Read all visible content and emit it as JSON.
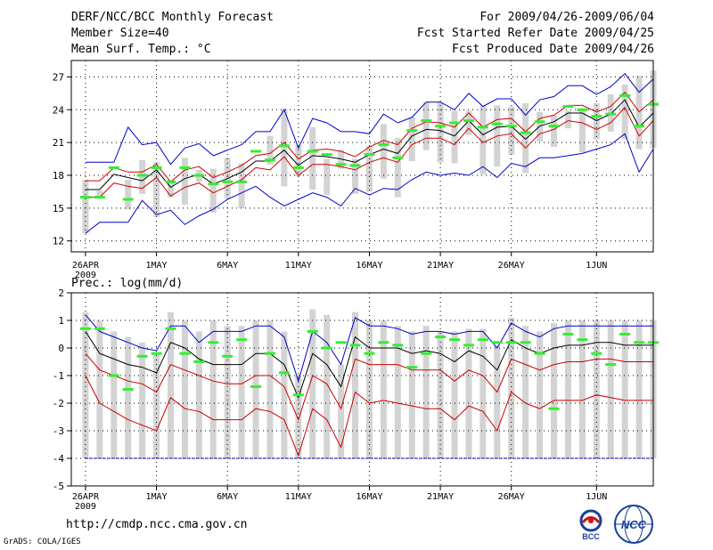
{
  "header": {
    "title": "DERF/NCC/BCC Monthly Forecast",
    "member_size": "Member Size=40",
    "variable": "Mean Surf. Temp.: °C",
    "fcst_period": "For 2009/04/26-2009/06/04",
    "fcst_started": "Fcst Started Refer Date 2009/04/25",
    "fcst_produced": "Fcst Produced Date 2009/04/26"
  },
  "footer": {
    "url": "http://cmdp.ncc.cma.gov.cn",
    "credit": "GrADS: COLA/IGES"
  },
  "logos": {
    "bcc": "BCC",
    "ncc": "NCC"
  },
  "colors": {
    "spread_bar": "#d3d3d3",
    "mean": "#000000",
    "inner_bounds": "#cc0000",
    "outer_bounds": "#0000cc",
    "observed": "#33ee33",
    "baseline": "#0000cc"
  },
  "chart_data": [
    {
      "type": "line",
      "panel": "temperature",
      "title": "Mean Surf. Temp.: °C",
      "xlabel": "",
      "ylabel": "°C",
      "ylim": [
        11,
        28.5
      ],
      "yticks": [
        12,
        15,
        18,
        21,
        24,
        27
      ],
      "x_day_range": [
        -1,
        40
      ],
      "x_ticks": [
        {
          "day": 0,
          "label": "26APR",
          "sublabel": "2009"
        },
        {
          "day": 5,
          "label": "1MAY"
        },
        {
          "day": 10,
          "label": "6MAY"
        },
        {
          "day": 15,
          "label": "11MAY"
        },
        {
          "day": 20,
          "label": "16MAY"
        },
        {
          "day": 25,
          "label": "21MAY"
        },
        {
          "day": 30,
          "label": "26MAY"
        },
        {
          "day": 36,
          "label": "1JUN"
        }
      ],
      "series": [
        {
          "name": "upper-outer",
          "color": "#0000cc",
          "values": [
            19.2,
            19.2,
            19.2,
            22.4,
            20.8,
            21.0,
            19.0,
            20.5,
            20.9,
            19.8,
            20.3,
            20.8,
            22.0,
            22.0,
            24.0,
            20.5,
            23.2,
            22.8,
            22.0,
            22.0,
            21.8,
            23.6,
            22.8,
            23.3,
            24.7,
            24.7,
            24.0,
            25.5,
            24.3,
            25.0,
            25.0,
            23.5,
            24.9,
            25.2,
            26.2,
            26.2,
            25.4,
            26.1,
            27.3,
            25.6,
            26.8
          ]
        },
        {
          "name": "upper-inner",
          "color": "#cc0000",
          "values": [
            17.5,
            17.5,
            18.7,
            18.3,
            18.3,
            19.0,
            17.4,
            18.5,
            18.8,
            17.8,
            18.3,
            18.9,
            19.8,
            20.0,
            21.0,
            19.5,
            20.3,
            20.4,
            20.2,
            19.7,
            20.6,
            21.2,
            20.8,
            22.3,
            22.9,
            22.8,
            22.4,
            23.7,
            22.4,
            23.1,
            23.2,
            22.0,
            23.2,
            23.5,
            24.4,
            24.4,
            23.8,
            24.3,
            25.6,
            23.8,
            24.9
          ]
        },
        {
          "name": "mean",
          "color": "#000000",
          "values": [
            16.7,
            16.7,
            18.1,
            17.8,
            17.5,
            18.5,
            16.9,
            17.7,
            18.1,
            17.2,
            17.7,
            18.3,
            19.3,
            19.3,
            20.3,
            18.9,
            19.8,
            19.7,
            19.5,
            19.2,
            19.9,
            20.4,
            20.0,
            21.6,
            22.2,
            22.1,
            21.6,
            23.0,
            21.7,
            22.4,
            22.5,
            21.3,
            22.5,
            22.9,
            23.7,
            23.7,
            23.0,
            23.6,
            24.9,
            22.4,
            23.7
          ]
        },
        {
          "name": "lower-inner",
          "color": "#cc0000",
          "values": [
            16.0,
            16.0,
            17.3,
            17.0,
            16.8,
            17.8,
            16.1,
            16.9,
            17.3,
            16.4,
            17.0,
            17.6,
            18.7,
            18.5,
            19.7,
            18.0,
            19.0,
            19.0,
            18.8,
            18.5,
            19.2,
            19.6,
            19.2,
            20.8,
            21.4,
            21.4,
            20.8,
            22.3,
            21.0,
            21.6,
            21.8,
            20.5,
            21.8,
            22.2,
            23.0,
            22.8,
            22.2,
            22.8,
            24.2,
            21.6,
            23.0
          ]
        },
        {
          "name": "lower-outer",
          "color": "#0000cc",
          "values": [
            12.7,
            13.7,
            13.7,
            13.7,
            15.7,
            14.4,
            14.8,
            13.5,
            14.3,
            14.9,
            15.8,
            16.4,
            17.0,
            16.0,
            15.2,
            15.8,
            16.4,
            16.0,
            15.2,
            16.8,
            16.2,
            16.8,
            16.7,
            17.6,
            18.3,
            18.0,
            18.2,
            18.0,
            18.8,
            17.8,
            19.1,
            18.8,
            19.6,
            19.6,
            19.8,
            20.0,
            20.4,
            20.8,
            21.8,
            18.3,
            20.4
          ]
        }
      ],
      "observed": [
        16.0,
        16.0,
        18.7,
        15.8,
        18.0,
        18.7,
        17.4,
        18.7,
        18.0,
        17.2,
        17.4,
        17.4,
        20.2,
        19.4,
        20.7,
        18.7,
        20.2,
        19.9,
        19.0,
        18.9,
        19.9,
        20.8,
        19.6,
        22.1,
        23.0,
        22.5,
        22.8,
        23.0,
        22.4,
        22.7,
        22.5,
        21.9,
        22.9,
        22.5,
        24.3,
        24.0,
        23.4,
        23.6,
        25.3,
        22.5,
        24.5
      ],
      "spread_max": [
        17.6,
        16.6,
        17.0,
        17.6,
        19.4,
        19.2,
        17.6,
        19.6,
        18.5,
        18.6,
        19.6,
        19.1,
        18.8,
        21.6,
        24.1,
        20.7,
        22.4,
        19.5,
        20.3,
        19.5,
        20.7,
        22.7,
        21.4,
        23.3,
        24.7,
        24.7,
        23.9,
        23.9,
        24.4,
        24.4,
        24.3,
        24.6,
        23.8,
        23.5,
        23.9,
        24.1,
        24.6,
        25.4,
        26.3,
        27.1,
        27.6
      ],
      "spread_min": [
        12.7,
        16.0,
        17.8,
        14.9,
        16.3,
        14.2,
        16.0,
        15.3,
        17.4,
        14.6,
        15.9,
        15.0,
        19.1,
        19.0,
        17.0,
        17.9,
        16.7,
        16.2,
        18.6,
        16.3,
        16.5,
        17.7,
        16.0,
        19.3,
        20.3,
        19.2,
        19.1,
        21.7,
        18.1,
        18.8,
        19.9,
        18.2,
        21.1,
        20.6,
        22.3,
        20.1,
        21.3,
        22.0,
        21.3,
        20.4,
        20.5
      ]
    },
    {
      "type": "line",
      "panel": "precipitation",
      "title": "Prec.: log(mm/d)",
      "xlabel": "",
      "ylabel": "log(mm/d)",
      "ylim": [
        -5,
        2
      ],
      "yticks": [
        2,
        1,
        0,
        -1,
        -2,
        -3,
        -4,
        -5
      ],
      "x_day_range": [
        -1,
        40
      ],
      "x_ticks": [
        {
          "day": 0,
          "label": "26APR",
          "sublabel": "2009"
        },
        {
          "day": 5,
          "label": "1MAY"
        },
        {
          "day": 10,
          "label": "6MAY"
        },
        {
          "day": 15,
          "label": "11MAY"
        },
        {
          "day": 20,
          "label": "16MAY"
        },
        {
          "day": 25,
          "label": "21MAY"
        },
        {
          "day": 30,
          "label": "26MAY"
        },
        {
          "day": 36,
          "label": "1JUN"
        }
      ],
      "baseline": -4,
      "series": [
        {
          "name": "upper-outer",
          "color": "#0000cc",
          "values": [
            1.2,
            0.6,
            0.4,
            0.2,
            0.0,
            -0.1,
            0.8,
            0.8,
            0.2,
            0.6,
            0.6,
            0.6,
            0.8,
            0.8,
            0.4,
            -1.2,
            0.6,
            0.2,
            -0.6,
            1.1,
            0.8,
            0.8,
            0.7,
            0.5,
            0.6,
            0.6,
            0.5,
            0.6,
            0.6,
            0.0,
            0.9,
            0.6,
            0.4,
            0.7,
            0.8,
            0.8,
            0.8,
            0.8,
            0.8,
            0.8,
            0.8
          ]
        },
        {
          "name": "mean",
          "color": "#000000",
          "values": [
            0.6,
            -0.2,
            -0.4,
            -0.6,
            -0.7,
            -0.9,
            0.2,
            0.0,
            -0.4,
            -0.6,
            -0.6,
            -0.6,
            -0.2,
            -0.2,
            -0.6,
            -1.8,
            -0.2,
            -0.6,
            -1.4,
            0.4,
            0.0,
            0.0,
            0.0,
            -0.2,
            -0.1,
            -0.2,
            -0.5,
            -0.1,
            -0.3,
            -0.8,
            0.3,
            0.0,
            -0.2,
            0.0,
            0.1,
            0.1,
            0.2,
            0.2,
            0.1,
            0.1,
            0.1
          ]
        },
        {
          "name": "upper-inner",
          "color": "#cc0000",
          "values": [
            -0.2,
            -0.8,
            -1.0,
            -1.2,
            -1.3,
            -1.6,
            -0.6,
            -0.8,
            -1.0,
            -1.2,
            -1.3,
            -1.3,
            -1.0,
            -1.0,
            -1.4,
            -2.6,
            -1.0,
            -1.3,
            -2.2,
            -0.4,
            -0.6,
            -0.6,
            -0.6,
            -0.8,
            -0.8,
            -0.8,
            -1.2,
            -0.8,
            -1.0,
            -1.6,
            -0.4,
            -0.6,
            -0.8,
            -0.6,
            -0.5,
            -0.5,
            -0.4,
            -0.4,
            -0.5,
            -0.5,
            -0.5
          ]
        },
        {
          "name": "lower-inner",
          "color": "#cc0000",
          "values": [
            -1.0,
            -2.0,
            -2.3,
            -2.6,
            -2.8,
            -3.0,
            -1.8,
            -2.2,
            -2.3,
            -2.6,
            -2.6,
            -2.6,
            -2.2,
            -2.3,
            -2.6,
            -3.9,
            -2.2,
            -2.6,
            -3.6,
            -1.6,
            -2.0,
            -1.9,
            -2.0,
            -2.1,
            -2.2,
            -2.2,
            -2.6,
            -2.1,
            -2.3,
            -3.0,
            -1.6,
            -2.0,
            -2.2,
            -1.9,
            -1.9,
            -1.9,
            -1.7,
            -1.8,
            -1.9,
            -1.9,
            -1.9
          ]
        }
      ],
      "observed": [
        0.7,
        0.7,
        -1.0,
        -1.5,
        -0.3,
        -0.2,
        0.7,
        -0.2,
        -0.5,
        0.2,
        -0.3,
        0.3,
        -1.4,
        -0.2,
        -0.9,
        -1.7,
        0.6,
        0.0,
        0.2,
        0.1,
        -0.2,
        0.2,
        0.1,
        -0.7,
        -0.2,
        0.4,
        0.3,
        0.1,
        0.3,
        0.2,
        0.2,
        0.2,
        -0.2,
        -2.2,
        0.5,
        0.3,
        -0.2,
        -0.6,
        0.5,
        0.2,
        0.2
      ],
      "spread_max": [
        1.3,
        1.0,
        0.6,
        0.4,
        0.2,
        -0.2,
        1.3,
        1.0,
        0.6,
        1.0,
        0.8,
        0.8,
        1.0,
        1.0,
        0.6,
        -1.0,
        1.4,
        1.2,
        -0.6,
        1.3,
        1.0,
        1.0,
        0.8,
        0.6,
        0.8,
        0.6,
        0.6,
        0.7,
        0.7,
        0.1,
        1.1,
        0.8,
        0.6,
        0.9,
        1.0,
        1.0,
        1.0,
        1.0,
        1.0,
        1.0,
        1.0
      ]
    }
  ]
}
